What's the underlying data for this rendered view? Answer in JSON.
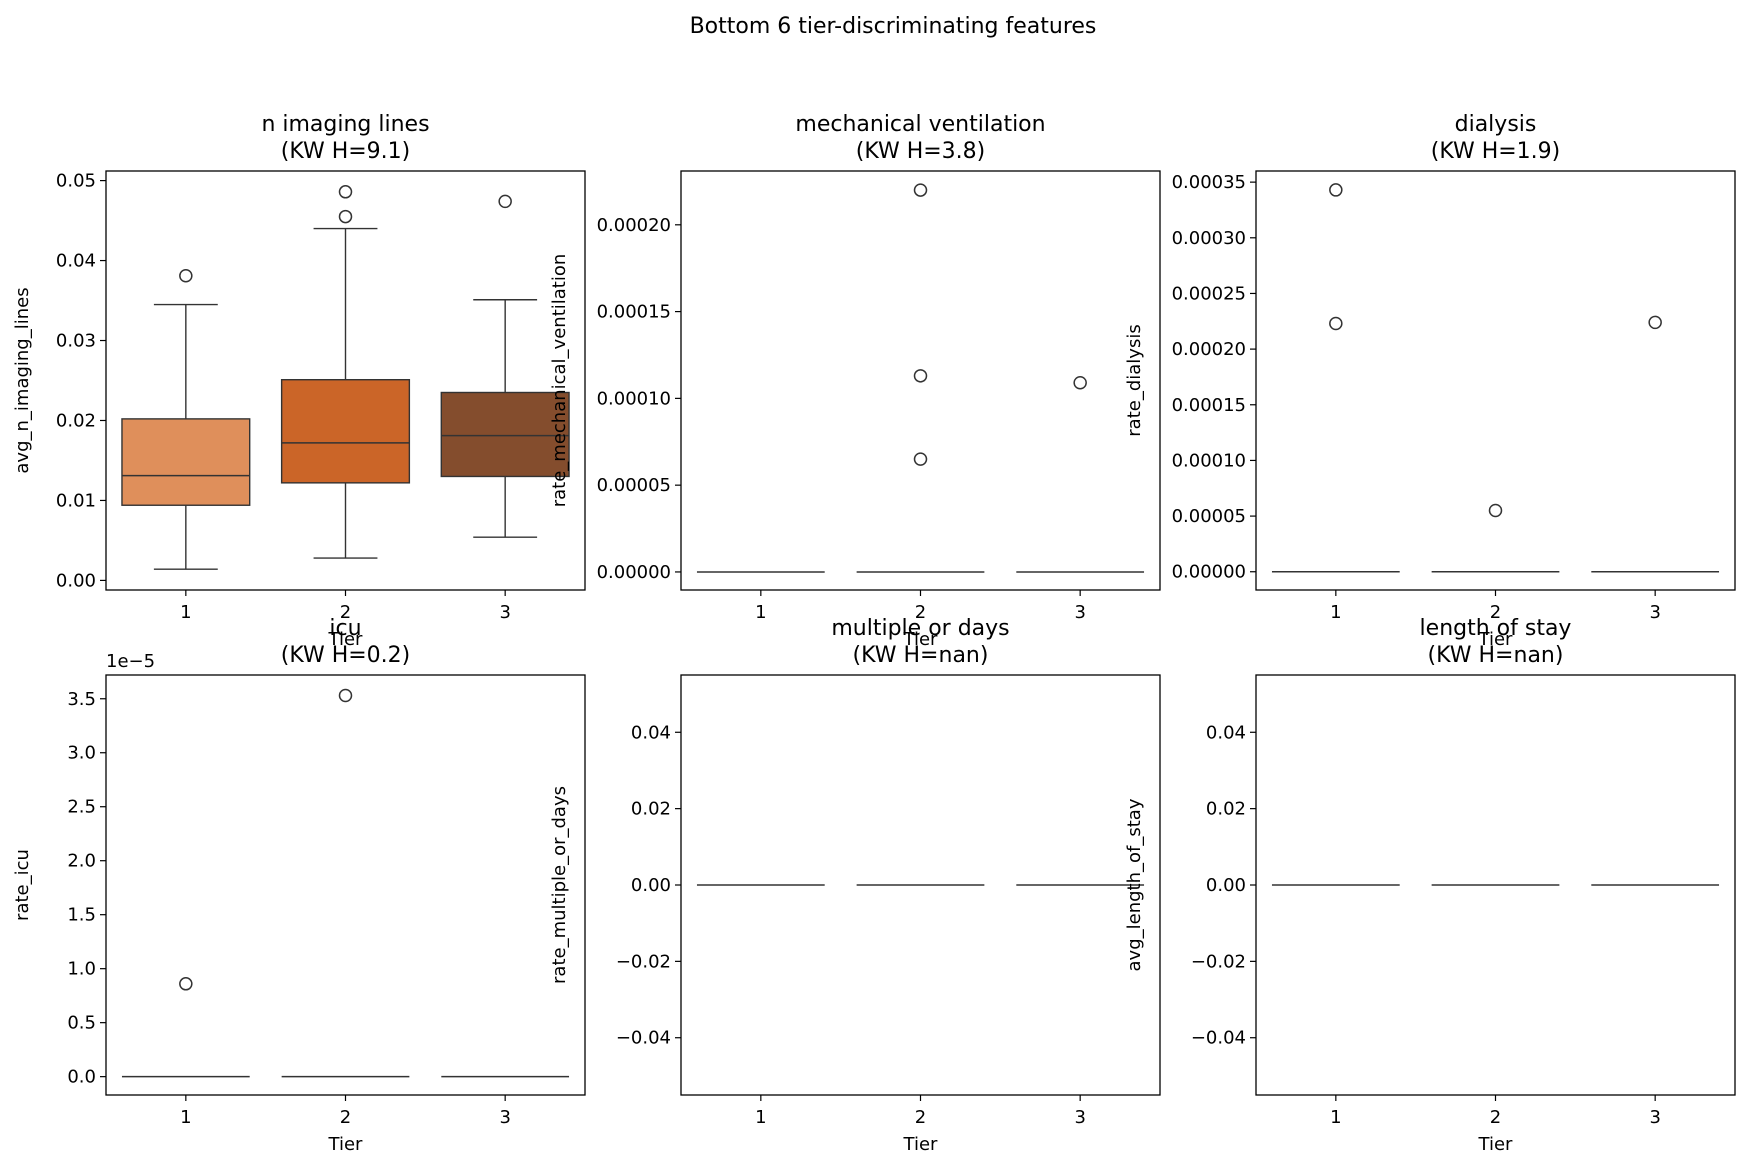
{
  "chart_data": {
    "type": "box",
    "suptitle": "Bottom 6 tier-discriminating features",
    "colors": {
      "tier1": "#df8f5b",
      "tier2": "#cb6528",
      "tier3": "#844d2d",
      "line": "#333333"
    },
    "panels": [
      {
        "title_line1": "n imaging lines",
        "title_line2": "(KW H=9.1)",
        "ylabel": "avg_n_imaging_lines",
        "xlabel": "Tier",
        "categories": [
          "1",
          "2",
          "3"
        ],
        "ylim": [
          -0.0012,
          0.0512
        ],
        "yticks": [
          0,
          0.01,
          0.02,
          0.03,
          0.04,
          0.05
        ],
        "ytick_labels": [
          "0.00",
          "0.01",
          "0.02",
          "0.03",
          "0.04",
          "0.05"
        ],
        "offset_text": "",
        "boxes": [
          {
            "tier": "1",
            "whislo": 0.0014,
            "q1": 0.0094,
            "med": 0.0131,
            "q3": 0.0202,
            "whishi": 0.0345,
            "fliers": [
              0.0381
            ]
          },
          {
            "tier": "2",
            "whislo": 0.0028,
            "q1": 0.0122,
            "med": 0.0172,
            "q3": 0.0251,
            "whishi": 0.044,
            "fliers": [
              0.0455,
              0.0486
            ]
          },
          {
            "tier": "3",
            "whislo": 0.0054,
            "q1": 0.013,
            "med": 0.0181,
            "q3": 0.0235,
            "whishi": 0.0351,
            "fliers": [
              0.0474
            ]
          }
        ]
      },
      {
        "title_line1": "mechanical ventilation",
        "title_line2": "(KW H=3.8)",
        "ylabel": "rate_mechanical_ventilation",
        "xlabel": "Tier",
        "categories": [
          "1",
          "2",
          "3"
        ],
        "ylim": [
          -1.04e-05,
          0.000231
        ],
        "yticks": [
          0,
          5e-05,
          0.0001,
          0.00015,
          0.0002
        ],
        "ytick_labels": [
          "0.00000",
          "0.00005",
          "0.00010",
          "0.00015",
          "0.00020"
        ],
        "offset_text": "",
        "boxes": [
          {
            "tier": "1",
            "whislo": 0,
            "q1": 0,
            "med": 0,
            "q3": 0,
            "whishi": 0,
            "fliers": []
          },
          {
            "tier": "2",
            "whislo": 0,
            "q1": 0,
            "med": 0,
            "q3": 0,
            "whishi": 0,
            "fliers": [
              6.5e-05,
              0.000113,
              0.00022
            ]
          },
          {
            "tier": "3",
            "whislo": 0,
            "q1": 0,
            "med": 0,
            "q3": 0,
            "whishi": 0,
            "fliers": [
              0.000109
            ]
          }
        ]
      },
      {
        "title_line1": "dialysis",
        "title_line2": "(KW H=1.9)",
        "ylabel": "rate_dialysis",
        "xlabel": "Tier",
        "categories": [
          "1",
          "2",
          "3"
        ],
        "ylim": [
          -1.64e-05,
          0.00036
        ],
        "yticks": [
          0,
          5e-05,
          0.0001,
          0.00015,
          0.0002,
          0.00025,
          0.0003,
          0.00035
        ],
        "ytick_labels": [
          "0.00000",
          "0.00005",
          "0.00010",
          "0.00015",
          "0.00020",
          "0.00025",
          "0.00030",
          "0.00035"
        ],
        "offset_text": "",
        "boxes": [
          {
            "tier": "1",
            "whislo": 0,
            "q1": 0,
            "med": 0,
            "q3": 0,
            "whishi": 0,
            "fliers": [
              0.000223,
              0.000343
            ]
          },
          {
            "tier": "2",
            "whislo": 0,
            "q1": 0,
            "med": 0,
            "q3": 0,
            "whishi": 0,
            "fliers": [
              5.5e-05
            ]
          },
          {
            "tier": "3",
            "whislo": 0,
            "q1": 0,
            "med": 0,
            "q3": 0,
            "whishi": 0,
            "fliers": [
              0.000224
            ]
          }
        ]
      },
      {
        "title_line1": "icu",
        "title_line2": "(KW H=0.2)",
        "ylabel": "rate_icu",
        "xlabel": "Tier",
        "categories": [
          "1",
          "2",
          "3"
        ],
        "ylim": [
          -1.7e-06,
          3.72e-05
        ],
        "yticks": [
          0,
          5e-06,
          1e-05,
          1.5e-05,
          2e-05,
          2.5e-05,
          3e-05,
          3.5e-05
        ],
        "ytick_labels": [
          "0.0",
          "0.5",
          "1.0",
          "1.5",
          "2.0",
          "2.5",
          "3.0",
          "3.5"
        ],
        "offset_text": "1e−5",
        "boxes": [
          {
            "tier": "1",
            "whislo": 0,
            "q1": 0,
            "med": 0,
            "q3": 0,
            "whishi": 0,
            "fliers": [
              8.6e-06
            ]
          },
          {
            "tier": "2",
            "whislo": 0,
            "q1": 0,
            "med": 0,
            "q3": 0,
            "whishi": 0,
            "fliers": [
              3.53e-05
            ]
          },
          {
            "tier": "3",
            "whislo": 0,
            "q1": 0,
            "med": 0,
            "q3": 0,
            "whishi": 0,
            "fliers": []
          }
        ]
      },
      {
        "title_line1": "multiple or days",
        "title_line2": "(KW H=nan)",
        "ylabel": "rate_multiple_or_days",
        "xlabel": "Tier",
        "categories": [
          "1",
          "2",
          "3"
        ],
        "ylim": [
          -0.055,
          0.055
        ],
        "yticks": [
          -0.04,
          -0.02,
          0,
          0.02,
          0.04
        ],
        "ytick_labels": [
          "−0.04",
          "−0.02",
          "0.00",
          "0.02",
          "0.04"
        ],
        "offset_text": "",
        "boxes": [
          {
            "tier": "1",
            "whislo": 0,
            "q1": 0,
            "med": 0,
            "q3": 0,
            "whishi": 0,
            "fliers": []
          },
          {
            "tier": "2",
            "whislo": 0,
            "q1": 0,
            "med": 0,
            "q3": 0,
            "whishi": 0,
            "fliers": []
          },
          {
            "tier": "3",
            "whislo": 0,
            "q1": 0,
            "med": 0,
            "q3": 0,
            "whishi": 0,
            "fliers": []
          }
        ]
      },
      {
        "title_line1": "length of stay",
        "title_line2": "(KW H=nan)",
        "ylabel": "avg_length_of_stay",
        "xlabel": "Tier",
        "categories": [
          "1",
          "2",
          "3"
        ],
        "ylim": [
          -0.055,
          0.055
        ],
        "yticks": [
          -0.04,
          -0.02,
          0,
          0.02,
          0.04
        ],
        "ytick_labels": [
          "−0.04",
          "−0.02",
          "0.00",
          "0.02",
          "0.04"
        ],
        "offset_text": "",
        "boxes": [
          {
            "tier": "1",
            "whislo": 0,
            "q1": 0,
            "med": 0,
            "q3": 0,
            "whishi": 0,
            "fliers": []
          },
          {
            "tier": "2",
            "whislo": 0,
            "q1": 0,
            "med": 0,
            "q3": 0,
            "whishi": 0,
            "fliers": []
          },
          {
            "tier": "3",
            "whislo": 0,
            "q1": 0,
            "med": 0,
            "q3": 0,
            "whishi": 0,
            "fliers": []
          }
        ]
      }
    ]
  }
}
